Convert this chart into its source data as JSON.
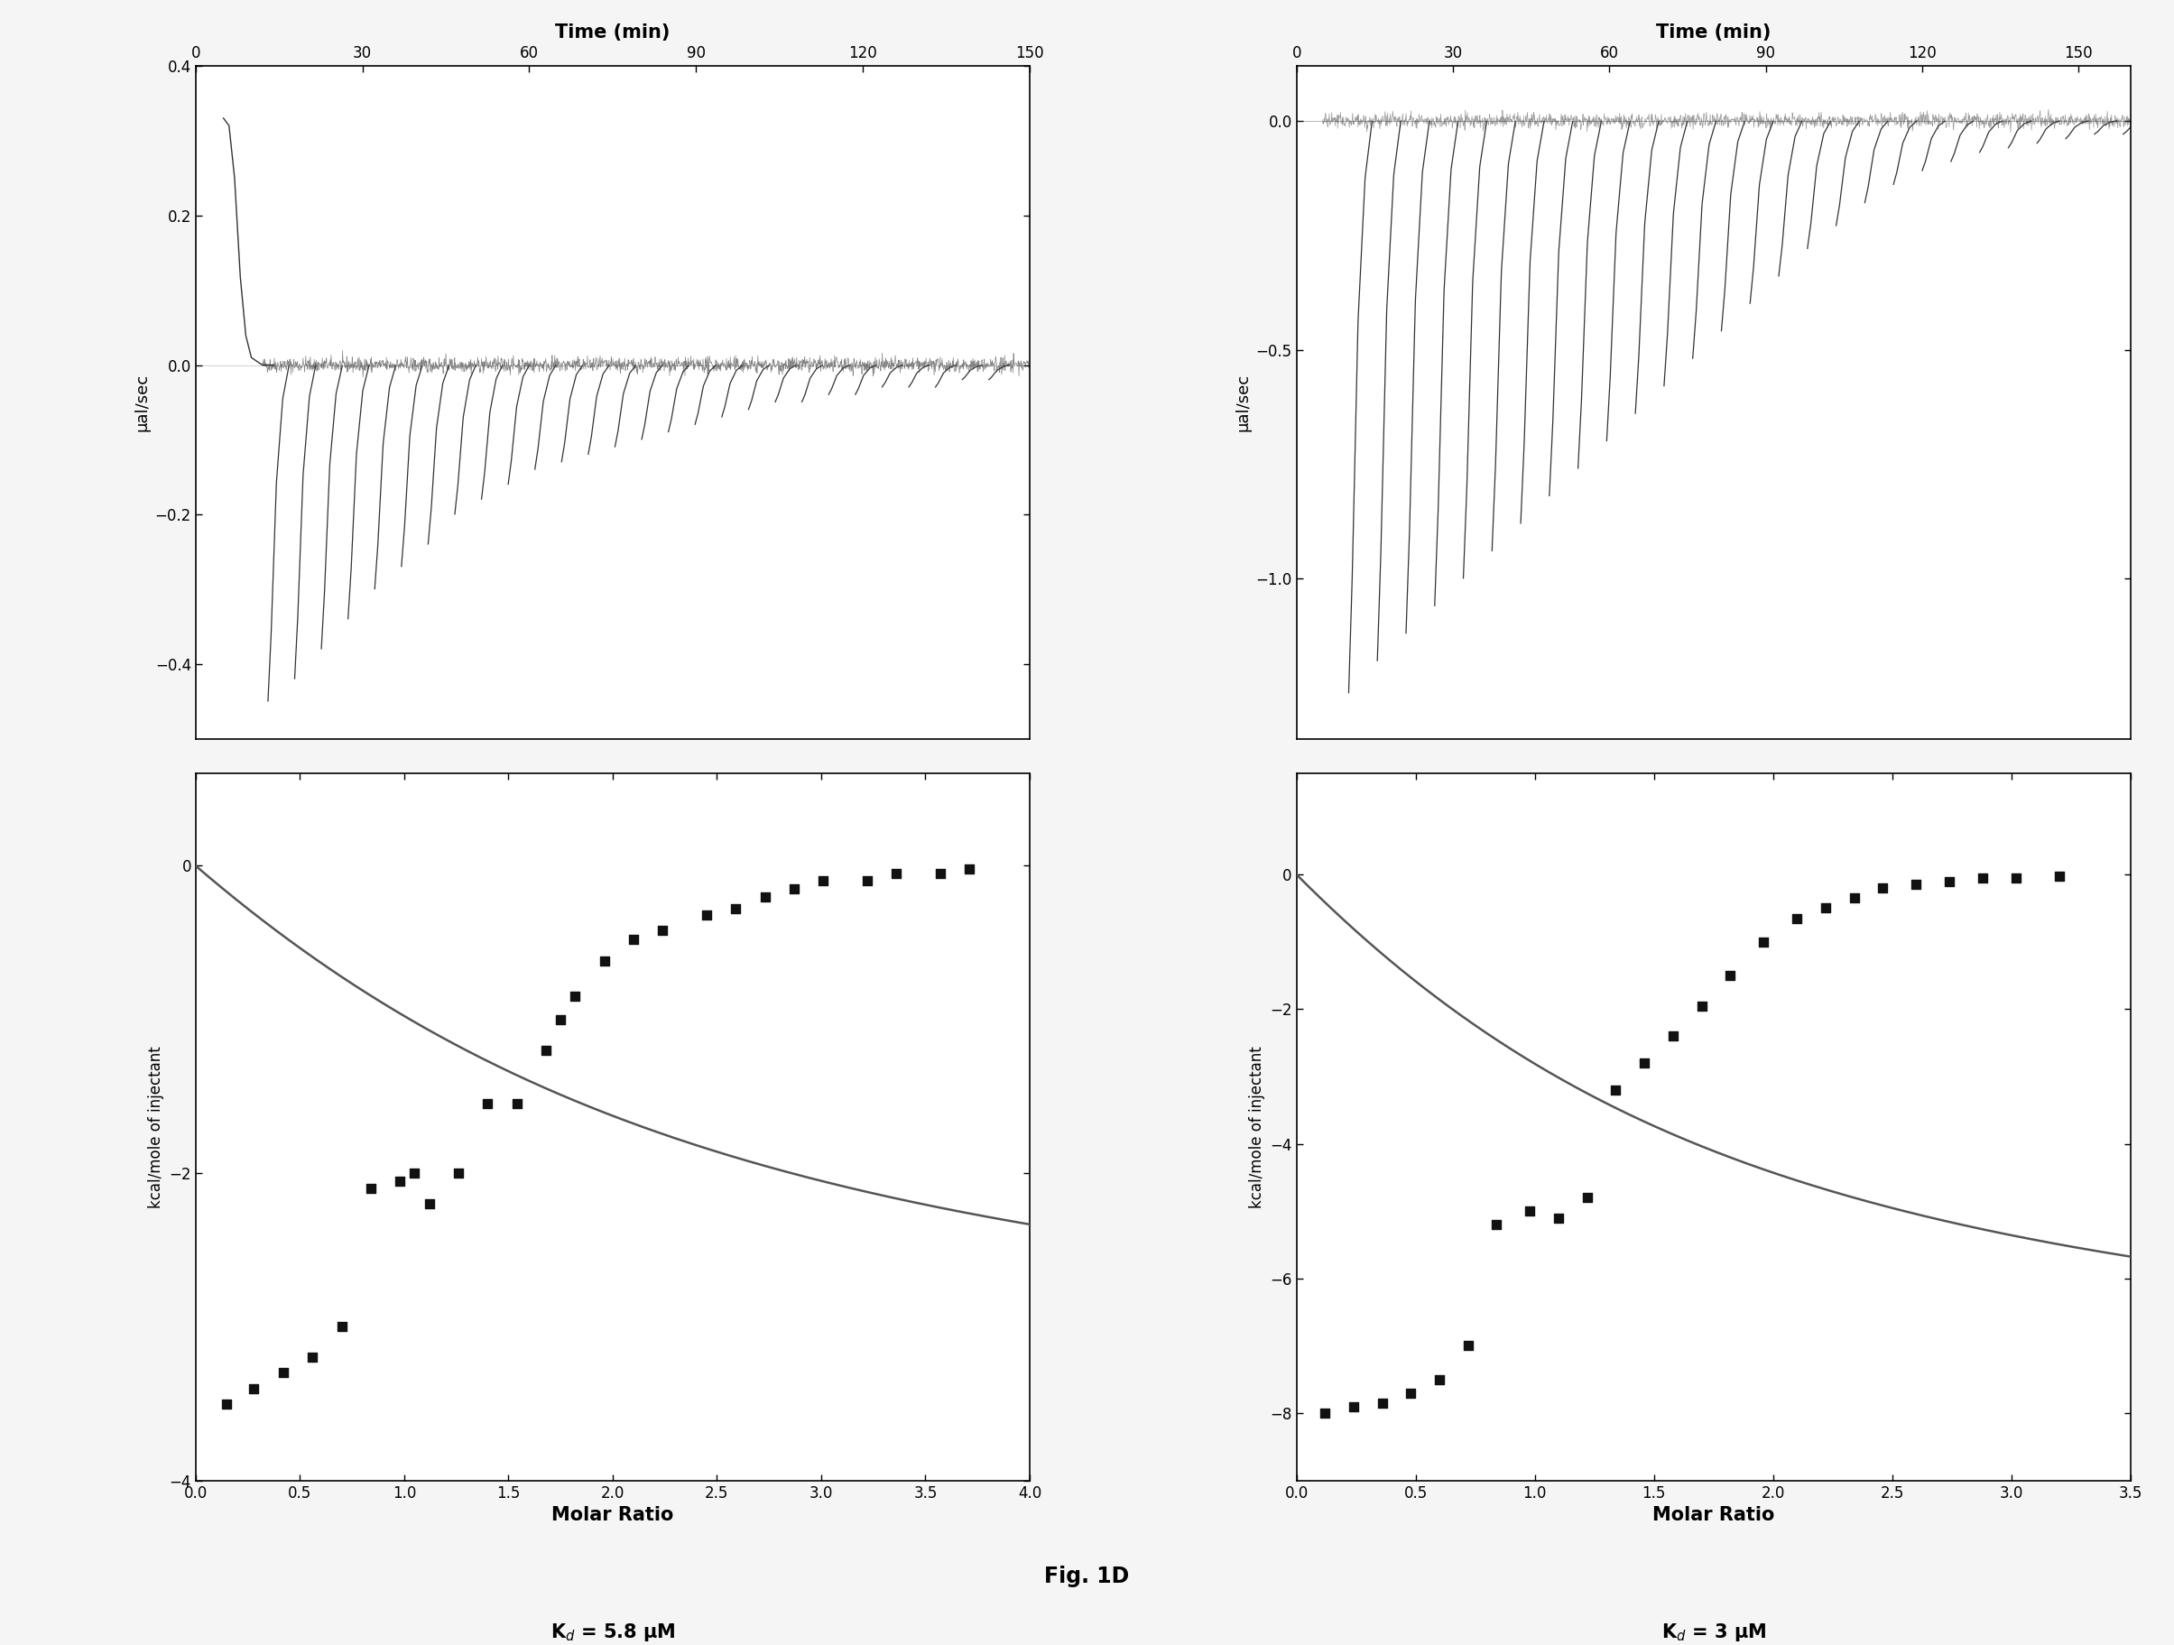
{
  "left_top": {
    "xlim": [
      0,
      150
    ],
    "ylim": [
      -0.5,
      0.4
    ],
    "xticks": [
      0,
      30,
      60,
      90,
      120,
      150
    ],
    "yticks": [
      0.4,
      0.2,
      0.0,
      -0.2,
      -0.4
    ],
    "xlabel": "Time (min)",
    "ylabel": "μal/sec",
    "n_spikes": 28,
    "spike_times": [
      13,
      17.8,
      22.6,
      27.4,
      32.2,
      37.0,
      41.8,
      46.6,
      51.4,
      56.2,
      61.0,
      65.8,
      70.6,
      75.4,
      80.2,
      85.0,
      89.8,
      94.6,
      99.4,
      104.2,
      109.0,
      113.8,
      118.6,
      123.4,
      128.2,
      133.0,
      137.8,
      142.6
    ],
    "spike_depths": [
      -0.45,
      -0.42,
      -0.38,
      -0.34,
      -0.3,
      -0.27,
      -0.24,
      -0.2,
      -0.18,
      -0.16,
      -0.14,
      -0.13,
      -0.12,
      -0.11,
      -0.1,
      -0.09,
      -0.08,
      -0.07,
      -0.06,
      -0.05,
      -0.05,
      -0.04,
      -0.04,
      -0.03,
      -0.03,
      -0.03,
      -0.02,
      -0.02
    ],
    "initial_peak_t": [
      5,
      6,
      7,
      8,
      9,
      10,
      12,
      14
    ],
    "initial_peak_y": [
      0.33,
      0.32,
      0.25,
      0.12,
      0.04,
      0.01,
      0.0,
      0.0
    ]
  },
  "left_bottom": {
    "xlim": [
      0.0,
      4.0
    ],
    "ylim": [
      -4.0,
      0.6
    ],
    "xticks": [
      0.0,
      0.5,
      1.0,
      1.5,
      2.0,
      2.5,
      3.0,
      3.5,
      4.0
    ],
    "yticks": [
      0,
      -2,
      -4
    ],
    "xlabel": "Molar Ratio",
    "ylabel": "kcal/mole of injectant",
    "kd_label": "K$_d$ = 5.8 μM",
    "scatter_x": [
      0.15,
      0.28,
      0.42,
      0.56,
      0.7,
      0.84,
      0.98,
      1.05,
      1.12,
      1.26,
      1.4,
      1.54,
      1.68,
      1.75,
      1.82,
      1.96,
      2.1,
      2.24,
      2.45,
      2.59,
      2.73,
      2.87,
      3.01,
      3.22,
      3.36,
      3.57,
      3.71
    ],
    "scatter_y": [
      -3.5,
      -3.4,
      -3.3,
      -3.2,
      -3.0,
      -2.1,
      -2.05,
      -2.0,
      -2.2,
      -2.0,
      -1.55,
      -1.55,
      -1.2,
      -1.0,
      -0.85,
      -0.62,
      -0.48,
      -0.42,
      -0.32,
      -0.28,
      -0.2,
      -0.15,
      -0.1,
      -0.1,
      -0.05,
      -0.05,
      -0.02
    ],
    "fit_x_kd": 1.5,
    "fit_dH": -3.5,
    "fit_n": 1.5
  },
  "right_top": {
    "xlim": [
      0,
      160
    ],
    "ylim": [
      -1.35,
      0.12
    ],
    "xticks": [
      0,
      30,
      60,
      90,
      120,
      150
    ],
    "yticks": [
      0.0,
      -0.5,
      -1.0
    ],
    "xlabel": "Time (min)",
    "ylabel": "μal/sec",
    "n_spikes": 29,
    "spike_times": [
      10,
      15.5,
      21,
      26.5,
      32,
      37.5,
      43,
      48.5,
      54,
      59.5,
      65,
      70.5,
      76,
      81.5,
      87,
      92.5,
      98,
      103.5,
      109,
      114.5,
      120,
      125.5,
      131,
      136.5,
      142,
      147.5,
      153,
      158.5,
      164
    ],
    "spike_depths": [
      -1.25,
      -1.18,
      -1.12,
      -1.06,
      -1.0,
      -0.94,
      -0.88,
      -0.82,
      -0.76,
      -0.7,
      -0.64,
      -0.58,
      -0.52,
      -0.46,
      -0.4,
      -0.34,
      -0.28,
      -0.23,
      -0.18,
      -0.14,
      -0.11,
      -0.09,
      -0.07,
      -0.06,
      -0.05,
      -0.04,
      -0.03,
      -0.03,
      -0.02
    ]
  },
  "right_bottom": {
    "xlim": [
      0.0,
      3.5
    ],
    "ylim": [
      -9.0,
      1.5
    ],
    "xticks": [
      0.0,
      0.5,
      1.0,
      1.5,
      2.0,
      2.5,
      3.0,
      3.5
    ],
    "yticks": [
      0,
      -2,
      -4,
      -6,
      -8
    ],
    "xlabel": "Molar Ratio",
    "ylabel": "kcal/mole of injectant",
    "kd_label": "K$_d$ = 3 μM",
    "scatter_x": [
      0.12,
      0.24,
      0.36,
      0.48,
      0.6,
      0.72,
      0.84,
      0.98,
      1.1,
      1.22,
      1.34,
      1.46,
      1.58,
      1.7,
      1.82,
      1.96,
      2.1,
      2.22,
      2.34,
      2.46,
      2.6,
      2.74,
      2.88,
      3.02,
      3.2
    ],
    "scatter_y": [
      -8.0,
      -7.9,
      -7.85,
      -7.7,
      -7.5,
      -7.0,
      -5.2,
      -5.0,
      -5.1,
      -4.8,
      -3.2,
      -2.8,
      -2.4,
      -1.95,
      -1.5,
      -1.0,
      -0.65,
      -0.5,
      -0.35,
      -0.2,
      -0.15,
      -0.1,
      -0.05,
      -0.05,
      -0.02
    ],
    "fit_x_kd": 1.1,
    "fit_dH": -8.0,
    "fit_n": 1.15
  },
  "fig_label": "Fig. 1D",
  "background_color": "#f5f5f5",
  "plot_bg": "#ffffff",
  "text_color": "#000000",
  "spike_color": "#333333",
  "scatter_color": "#111111",
  "fit_color": "#555555"
}
